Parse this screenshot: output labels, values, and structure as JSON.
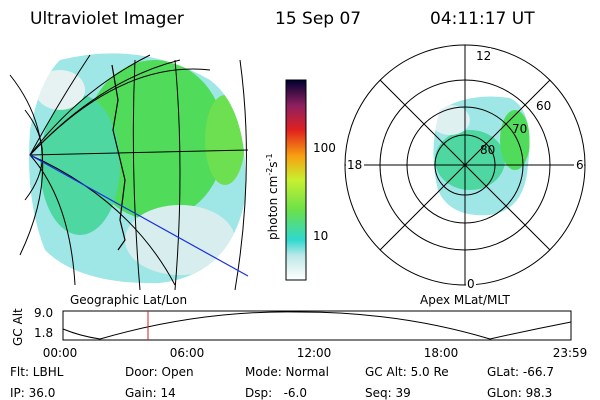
{
  "header": {
    "title": "Ultraviolet Imager",
    "date": "15 Sep 07",
    "time": "04:11:17 UT"
  },
  "colorbar": {
    "label": [
      "photon cm",
      "-2",
      "s",
      "-1"
    ],
    "ticks": [
      "100",
      "10"
    ]
  },
  "polar": {
    "lat_labels": [
      "60",
      "70",
      "80"
    ],
    "mlt_labels": [
      "12",
      "18",
      "6",
      "0"
    ]
  },
  "panel_titles": [
    "Geographic Lat/Lon",
    "Apex MLat/MLT"
  ],
  "altitude": {
    "label": "GC Alt",
    "ticks": [
      "9.0",
      "1.8"
    ],
    "times": [
      "00:00",
      "06:00",
      "12:00",
      "18:00",
      "23:59"
    ]
  },
  "footer": {
    "rows": [
      [
        "Flt: LBHL",
        "Door: Open",
        "Mode: Normal",
        "GC Alt: 5.0 Re",
        "GLat: -66.7"
      ],
      [
        "IP: 36.0",
        "Gain: 14",
        "Dsp:   -6.0",
        "Seq: 39",
        "GLon: 98.3"
      ]
    ]
  }
}
